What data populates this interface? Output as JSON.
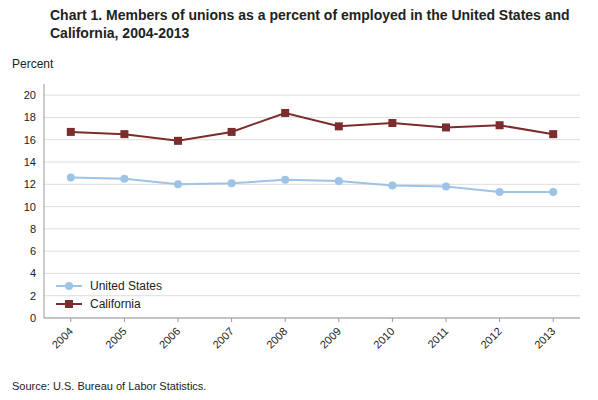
{
  "chart_data": {
    "type": "line",
    "title": "Chart 1. Members of unions as a percent of employed in the United States and California, 2004-2013",
    "y_label": "Percent",
    "annotations": [
      "Source: U.S. Bureau of Labor Statistics."
    ],
    "categories": [
      "2004",
      "2005",
      "2006",
      "2007",
      "2008",
      "2009",
      "2010",
      "2011",
      "2012",
      "2013"
    ],
    "series": [
      {
        "name": "United States",
        "color": "#9dc3e6",
        "marker": "circle",
        "values": [
          12.6,
          12.5,
          12.0,
          12.1,
          12.4,
          12.3,
          11.9,
          11.8,
          11.3,
          11.3
        ]
      },
      {
        "name": "California",
        "color": "#7b2c2c",
        "marker": "square",
        "values": [
          16.7,
          16.5,
          15.9,
          16.7,
          18.4,
          17.2,
          17.5,
          17.1,
          17.3,
          16.5
        ]
      }
    ],
    "ylim": [
      0,
      21
    ],
    "yticks": [
      0,
      2,
      4,
      6,
      8,
      10,
      12,
      14,
      16,
      18,
      20
    ],
    "grid": true,
    "legend": "lower left"
  }
}
